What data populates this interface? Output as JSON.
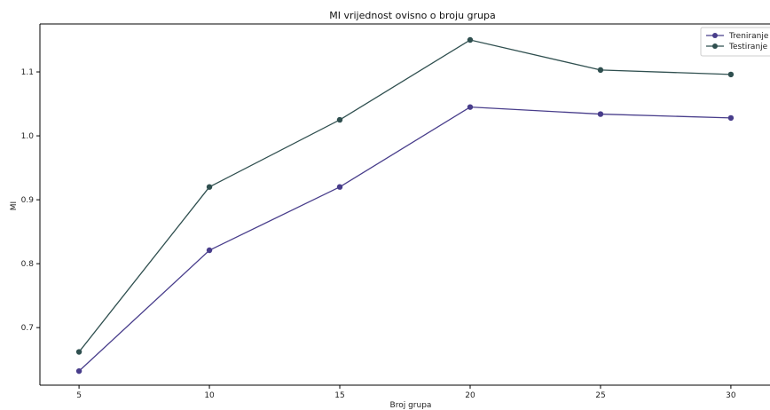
{
  "chart_data": {
    "type": "line",
    "title": "MI vrijednost ovisno o broju grupa",
    "xlabel": "Broj grupa",
    "ylabel": "MI",
    "x": [
      5,
      10,
      15,
      20,
      25,
      30
    ],
    "xlim": [
      3.5,
      31.5
    ],
    "ylim": [
      0.61,
      1.175
    ],
    "xticks": [
      "5",
      "10",
      "15",
      "20",
      "25",
      "30"
    ],
    "yticks": [
      "0.7",
      "0.8",
      "0.9",
      "1.0",
      "1.1"
    ],
    "ytick_values": [
      0.7,
      0.8,
      0.9,
      1.0,
      1.1
    ],
    "grid": false,
    "legend_position": "top-right",
    "series": [
      {
        "name": "Treniranje",
        "color": "#483d8b",
        "values": [
          0.632,
          0.821,
          0.92,
          1.045,
          1.034,
          1.028
        ]
      },
      {
        "name": "Testiranje",
        "color": "#2f4f4f",
        "values": [
          0.662,
          0.92,
          1.025,
          1.15,
          1.103,
          1.096
        ]
      }
    ]
  }
}
